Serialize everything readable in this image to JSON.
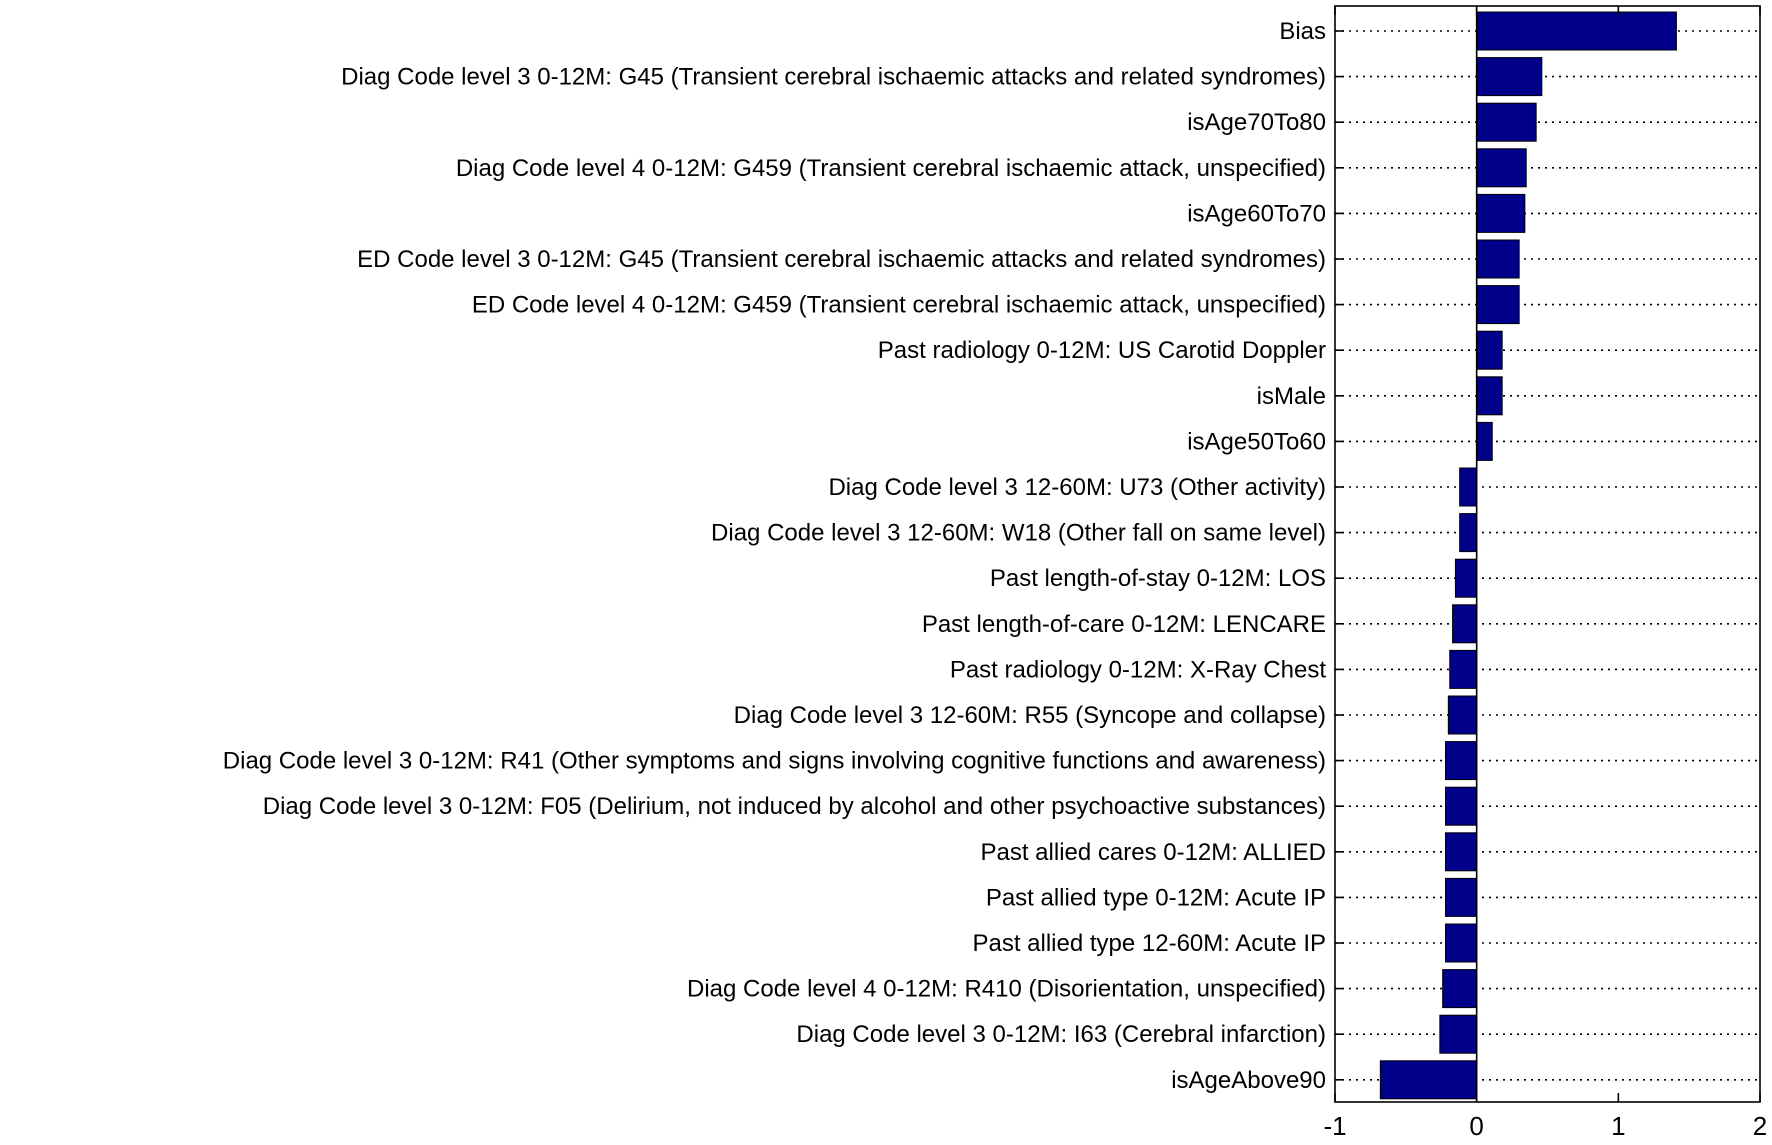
{
  "chart_data": {
    "type": "bar",
    "orientation": "horizontal",
    "title": "",
    "xlabel": "",
    "ylabel": "",
    "xlim": [
      -1,
      2
    ],
    "xticks": [
      -1,
      0,
      1,
      2
    ],
    "xtick_labels": [
      "-1",
      "0",
      "1",
      "2"
    ],
    "grid": "dotted horizontal lines at each category",
    "legend": "none",
    "bar_color": "#00008B",
    "bar_edge_color": "#000000",
    "categories": [
      "Bias",
      "Diag Code level 3 0-12M: G45 (Transient cerebral ischaemic attacks and related syndromes)",
      "isAge70To80",
      "Diag Code level 4 0-12M: G459 (Transient cerebral ischaemic attack, unspecified)",
      "isAge60To70",
      "ED Code level 3 0-12M: G45 (Transient cerebral ischaemic attacks and related syndromes)",
      "ED Code level 4 0-12M: G459 (Transient cerebral ischaemic attack, unspecified)",
      "Past radiology 0-12M: US Carotid Doppler",
      "isMale",
      "isAge50To60",
      "Diag Code level 3 12-60M: U73 (Other activity)",
      "Diag Code level 3 12-60M: W18 (Other fall on same level)",
      "Past length-of-stay  0-12M: LOS",
      "Past length-of-care 0-12M: LENCARE",
      "Past radiology 0-12M: X-Ray Chest",
      "Diag Code level 3 12-60M: R55 (Syncope and collapse)",
      "Diag Code level 3 0-12M: R41 (Other symptoms and signs involving cognitive functions and awareness)",
      "Diag Code level 3 0-12M: F05 (Delirium, not induced by alcohol and other psychoactive substances)",
      "Past allied cares 0-12M: ALLIED",
      "Past allied type 0-12M: Acute IP",
      "Past allied type 12-60M: Acute IP",
      "Diag Code level 4 0-12M: R410 (Disorientation, unspecified)",
      "Diag Code level 3 0-12M: I63 (Cerebral infarction)",
      "isAgeAbove90"
    ],
    "values": [
      1.41,
      0.46,
      0.42,
      0.35,
      0.34,
      0.3,
      0.3,
      0.18,
      0.18,
      0.11,
      -0.12,
      -0.12,
      -0.15,
      -0.17,
      -0.19,
      -0.2,
      -0.22,
      -0.22,
      -0.22,
      -0.22,
      -0.22,
      -0.24,
      -0.26,
      -0.68
    ]
  }
}
